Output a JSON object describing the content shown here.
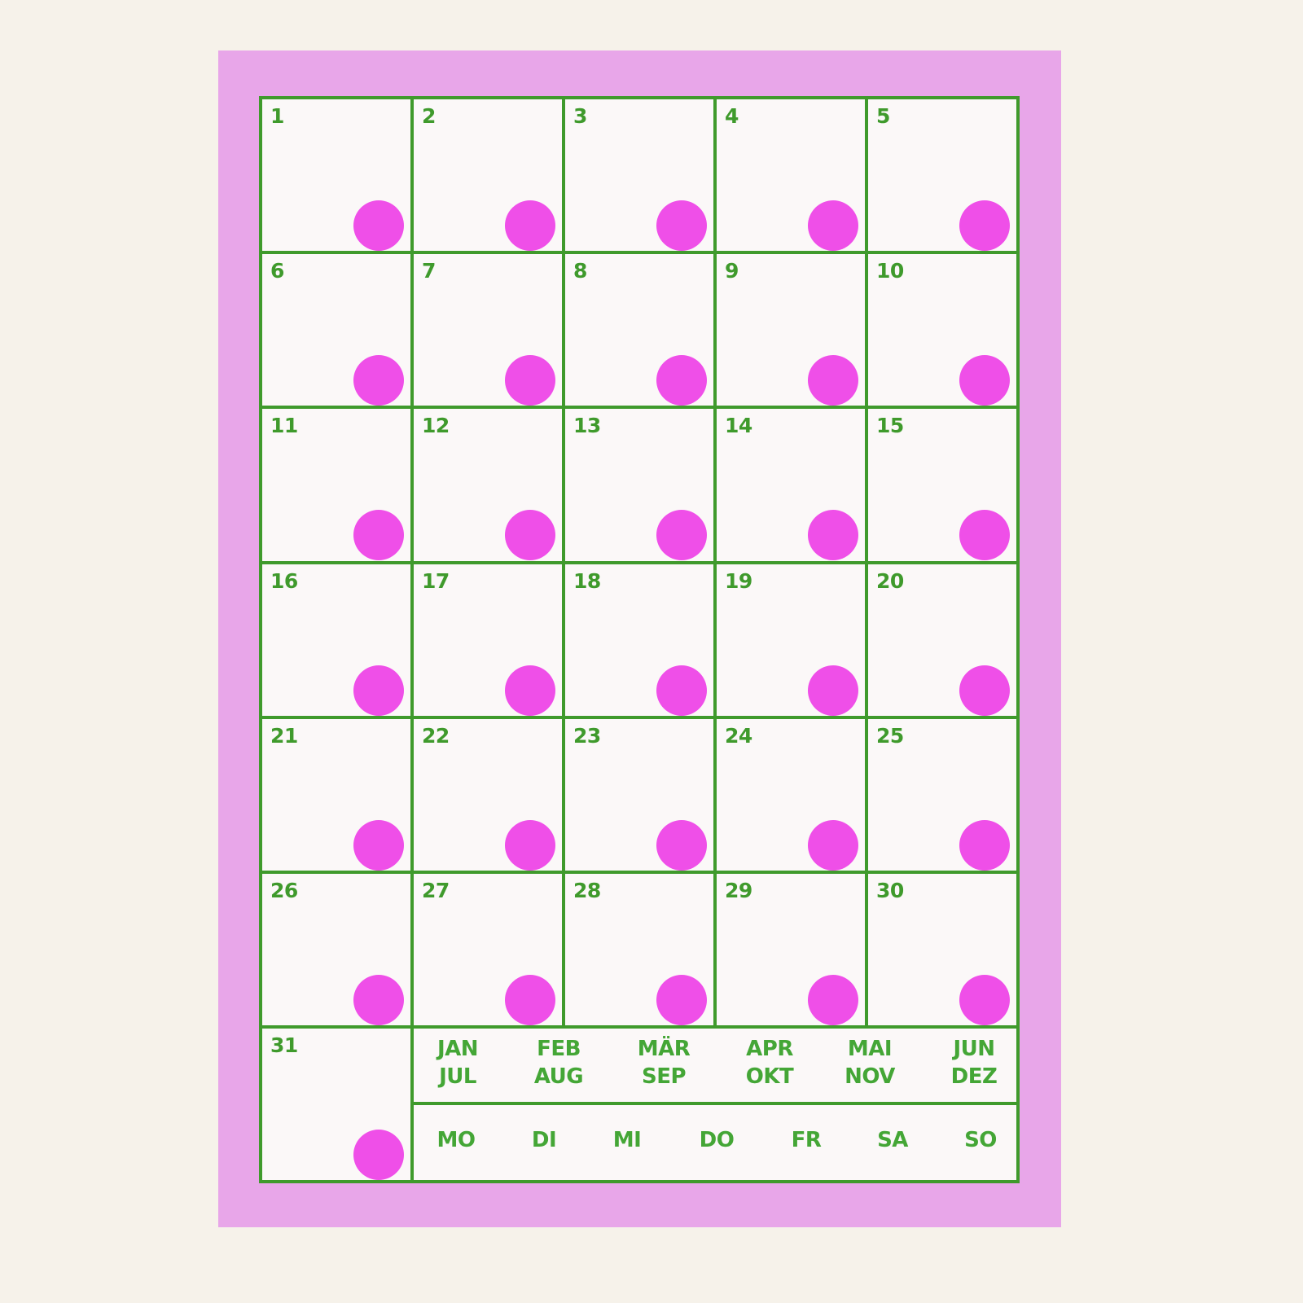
{
  "colors": {
    "card": "#e8a6e9",
    "grid_line": "#3f9a2c",
    "dot": "#ef4fe8",
    "text": "#44a636",
    "background": "#f6f2ea"
  },
  "days": [
    "1",
    "2",
    "3",
    "4",
    "5",
    "6",
    "7",
    "8",
    "9",
    "10",
    "11",
    "12",
    "13",
    "14",
    "15",
    "16",
    "17",
    "18",
    "19",
    "20",
    "21",
    "22",
    "23",
    "24",
    "25",
    "26",
    "27",
    "28",
    "29",
    "30",
    "31"
  ],
  "months": [
    [
      "JAN",
      "JUL"
    ],
    [
      "FEB",
      "AUG"
    ],
    [
      "MÄR",
      "SEP"
    ],
    [
      "APR",
      "OKT"
    ],
    [
      "MAI",
      "NOV"
    ],
    [
      "JUN",
      "DEZ"
    ]
  ],
  "weekdays": [
    "MO",
    "DI",
    "MI",
    "DO",
    "FR",
    "SA",
    "SO"
  ]
}
